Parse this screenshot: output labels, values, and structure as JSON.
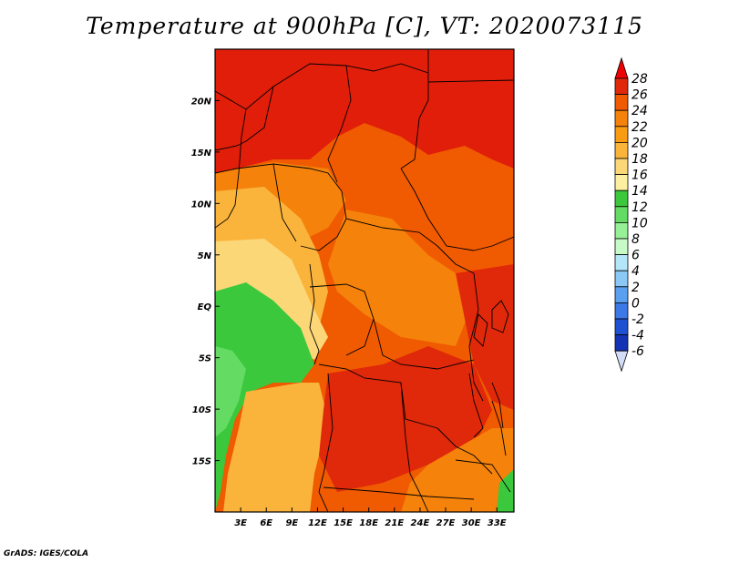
{
  "title": "Temperature at 900hPa [C], VT: 2020073115",
  "credit": "GrADS: IGES/COLA",
  "map": {
    "lon_range": [
      0,
      35
    ],
    "lat_range": [
      -20,
      25
    ],
    "x_ticks": [
      {
        "lon": 3,
        "label": "3E"
      },
      {
        "lon": 6,
        "label": "6E"
      },
      {
        "lon": 9,
        "label": "9E"
      },
      {
        "lon": 12,
        "label": "12E"
      },
      {
        "lon": 15,
        "label": "15E"
      },
      {
        "lon": 18,
        "label": "18E"
      },
      {
        "lon": 21,
        "label": "21E"
      },
      {
        "lon": 24,
        "label": "24E"
      },
      {
        "lon": 27,
        "label": "27E"
      },
      {
        "lon": 30,
        "label": "30E"
      },
      {
        "lon": 33,
        "label": "33E"
      }
    ],
    "y_ticks": [
      {
        "lat": 20,
        "label": "20N"
      },
      {
        "lat": 15,
        "label": "15N"
      },
      {
        "lat": 10,
        "label": "10N"
      },
      {
        "lat": 5,
        "label": "5N"
      },
      {
        "lat": 0,
        "label": "EQ"
      },
      {
        "lat": -5,
        "label": "5S"
      },
      {
        "lat": -10,
        "label": "10S"
      },
      {
        "lat": -15,
        "label": "15S"
      }
    ]
  },
  "colorbar": {
    "levels": [
      "28",
      "26",
      "24",
      "22",
      "20",
      "18",
      "16",
      "14",
      "12",
      "10",
      "8",
      "6",
      "4",
      "2",
      "0",
      "-2",
      "-4",
      "-6"
    ],
    "colors": [
      "#f00000",
      "#e0280a",
      "#f05a00",
      "#f5820a",
      "#fa9b14",
      "#fab43c",
      "#fcd778",
      "#fcf0a0",
      "#3cc83c",
      "#64dc64",
      "#96f096",
      "#c8fac8",
      "#b4e6fa",
      "#8cc8f5",
      "#5aa0f0",
      "#3c78e6",
      "#1e50d2",
      "#1432b4",
      "#0a1482",
      "#d2dcf5"
    ]
  },
  "regions": [
    {
      "name": "sahara-north",
      "color": "#e01e0a"
    },
    {
      "name": "central-warm",
      "color": "#f05a00"
    },
    {
      "name": "congo-mid",
      "color": "#f5820a"
    },
    {
      "name": "gulf-cool",
      "color": "#fcd778"
    },
    {
      "name": "atlantic-green",
      "color": "#3cc83c"
    },
    {
      "name": "angola-hot",
      "color": "#e0280a"
    }
  ]
}
